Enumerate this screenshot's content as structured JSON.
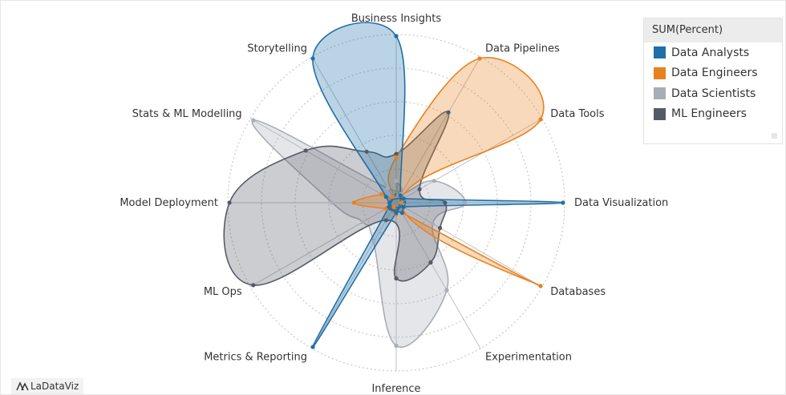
{
  "colors": {
    "Data Analysts": "#1f6fa8",
    "Data Engineers": "#e8821e",
    "Data Scientists": "#a9adb5",
    "ML Engineers": "#555b66",
    "grid": "#c8c8c8",
    "spoke": "#c0c0c0"
  },
  "legend": {
    "title": "SUM(Percent)",
    "items": [
      {
        "label": "Data Analysts",
        "color": "#1f6fa8"
      },
      {
        "label": "Data Engineers",
        "color": "#e8821e"
      },
      {
        "label": "Data Scientists",
        "color": "#a9adb5"
      },
      {
        "label": "ML Engineers",
        "color": "#555b66"
      }
    ]
  },
  "brand": {
    "name": "LaDataViz",
    "icon": "ladataviz-logo-icon"
  },
  "chart_data": {
    "type": "radar",
    "title": "",
    "axes": [
      "Business Insights",
      "Data Pipelines",
      "Data Tools",
      "Data Visualization",
      "Databases",
      "Experimentation",
      "Inference",
      "Metrics & Reporting",
      "ML Ops",
      "Model Deployment",
      "Stats & ML Modelling",
      "Storytelling"
    ],
    "rmax": 1.0,
    "grid_rings": 5,
    "grid": true,
    "legend_position": "top-right",
    "series": [
      {
        "name": "Data Analysts",
        "values": [
          0.99,
          0.05,
          0.05,
          0.99,
          0.05,
          0.07,
          0.06,
          0.99,
          0.05,
          0.04,
          0.07,
          0.99
        ]
      },
      {
        "name": "Data Engineers",
        "values": [
          0.27,
          0.99,
          0.99,
          0.03,
          0.99,
          0.07,
          0.07,
          0.03,
          0.07,
          0.25,
          0.1,
          0.04
        ]
      },
      {
        "name": "Data Scientists",
        "values": [
          0.13,
          0.06,
          0.26,
          0.41,
          0.25,
          0.6,
          0.85,
          0.27,
          0.23,
          0.38,
          0.98,
          0.1
        ]
      },
      {
        "name": "ML Engineers",
        "values": [
          0.29,
          0.62,
          0.16,
          0.29,
          0.3,
          0.41,
          0.45,
          0.12,
          0.98,
          0.99,
          0.62,
          0.35
        ]
      }
    ]
  }
}
